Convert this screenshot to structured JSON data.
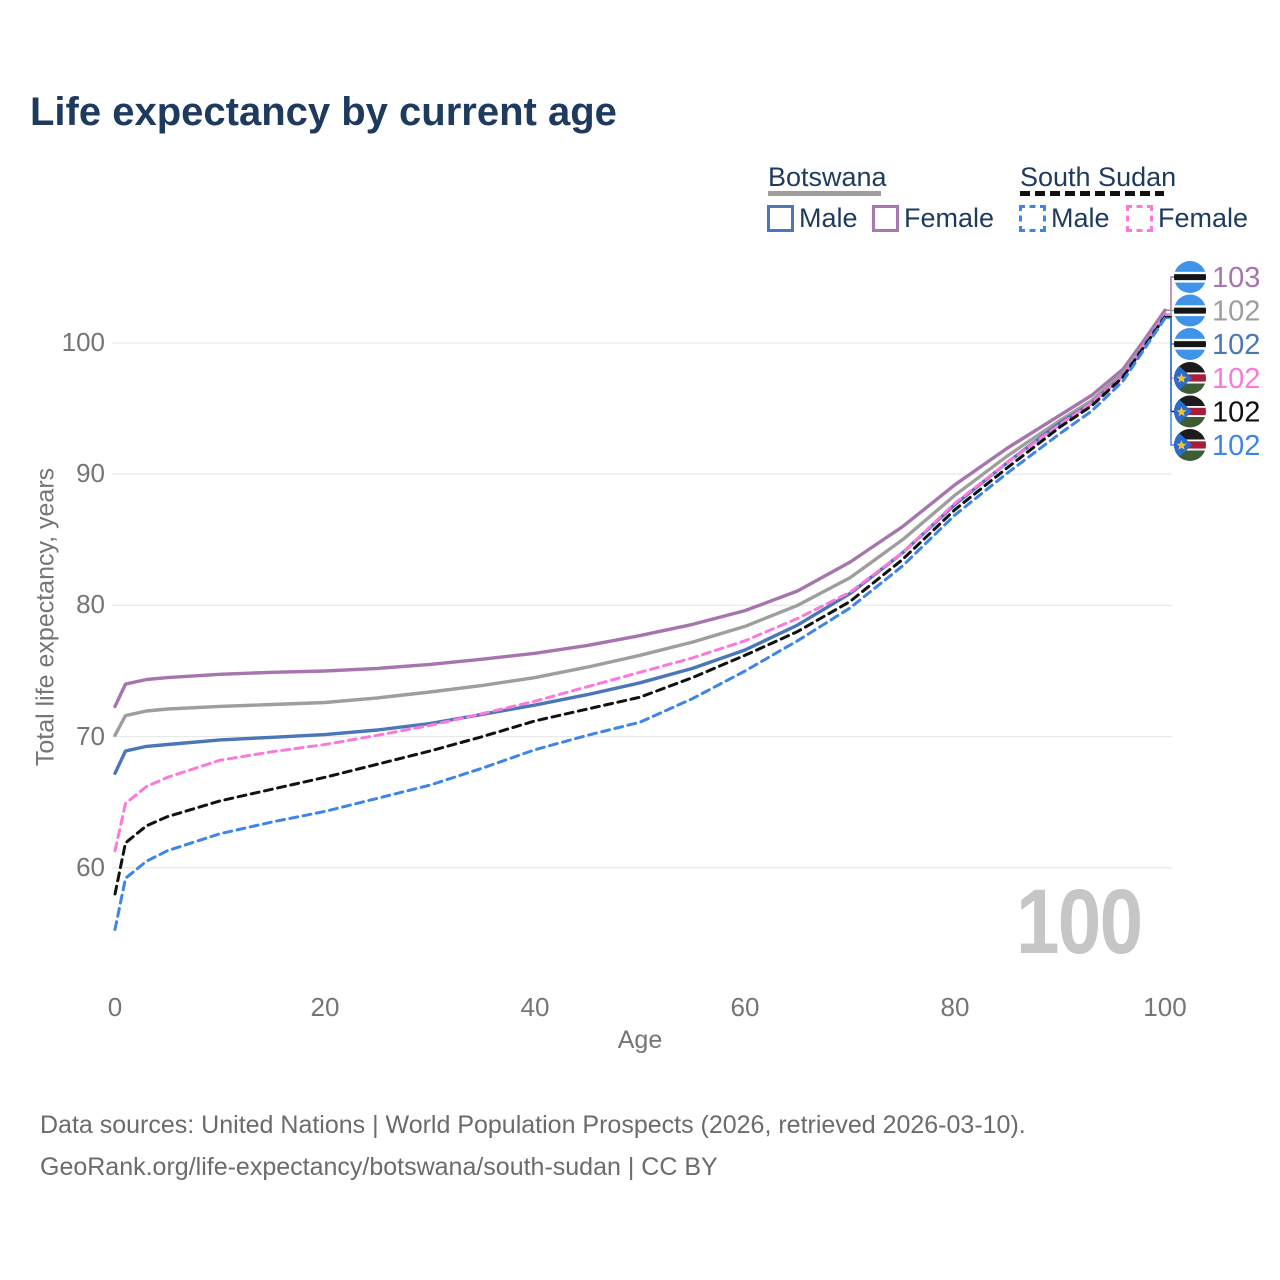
{
  "title": "Life expectancy by current age",
  "legend": {
    "groups": [
      {
        "label": "Botswana",
        "line_style": "solid",
        "underline_color": "#9e9e9e",
        "items": [
          {
            "label": "Male",
            "color": "#4a77b8",
            "dashed": false
          },
          {
            "label": "Female",
            "color": "#ab77b1",
            "dashed": false
          }
        ]
      },
      {
        "label": "South Sudan",
        "line_style": "dashed",
        "underline_color": "#111111",
        "items": [
          {
            "label": "Male",
            "color": "#3d85e9",
            "dashed": true
          },
          {
            "label": "Female",
            "color": "#fb7ad9",
            "dashed": true
          }
        ]
      }
    ]
  },
  "y_axis": {
    "label": "Total life expectancy, years",
    "ticks": [
      100,
      90,
      80,
      70,
      60
    ]
  },
  "x_axis": {
    "label": "Age",
    "ticks": [
      0,
      20,
      40,
      60,
      80,
      100
    ]
  },
  "watermark": "100",
  "end_labels": [
    {
      "flag": "botswana",
      "value": "103",
      "color": "#a775ae"
    },
    {
      "flag": "botswana",
      "value": "102",
      "color": "#9e9e9e"
    },
    {
      "flag": "botswana",
      "value": "102",
      "color": "#4a77b8"
    },
    {
      "flag": "south-sudan",
      "value": "102",
      "color": "#fb7ad9"
    },
    {
      "flag": "south-sudan",
      "value": "102",
      "color": "#111111"
    },
    {
      "flag": "south-sudan",
      "value": "102",
      "color": "#3d85e9"
    }
  ],
  "footer": {
    "line1": "Data sources: United Nations | World Population Prospects (2026, retrieved 2026-03-10).",
    "line2": "GeoRank.org/life-expectancy/botswana/south-sudan | CC BY"
  },
  "chart_data": {
    "type": "line",
    "title": "Life expectancy by current age",
    "xlabel": "Age",
    "ylabel": "Total life expectancy, years",
    "xlim": [
      0,
      100
    ],
    "ylim": [
      54,
      104
    ],
    "grid": "horizontal-only",
    "legend_position": "top-right",
    "x": [
      0,
      1,
      3,
      5,
      10,
      15,
      20,
      25,
      30,
      35,
      40,
      45,
      50,
      55,
      60,
      65,
      70,
      75,
      80,
      85,
      90,
      93,
      96,
      98,
      100
    ],
    "series": [
      {
        "name": "Botswana Female",
        "style": "solid",
        "color": "#a775ae",
        "values": [
          72.3,
          74.0,
          74.35,
          74.5,
          74.75,
          74.9,
          75.0,
          75.2,
          75.5,
          75.9,
          76.35,
          76.95,
          77.7,
          78.55,
          79.6,
          81.1,
          83.3,
          86.0,
          89.2,
          92.0,
          94.5,
          96.0,
          98.0,
          100.2,
          102.5
        ]
      },
      {
        "name": "Botswana All",
        "style": "solid",
        "color": "#9e9e9e",
        "values": [
          70.1,
          71.6,
          71.95,
          72.1,
          72.3,
          72.45,
          72.6,
          72.95,
          73.4,
          73.9,
          74.5,
          75.3,
          76.2,
          77.2,
          78.4,
          80.0,
          82.1,
          85.0,
          88.4,
          91.4,
          94.1,
          95.6,
          97.7,
          99.9,
          102.2
        ]
      },
      {
        "name": "Botswana Male",
        "style": "solid",
        "color": "#4a77b8",
        "values": [
          67.2,
          68.9,
          69.25,
          69.4,
          69.75,
          69.95,
          70.15,
          70.5,
          71.0,
          71.7,
          72.4,
          73.2,
          74.1,
          75.2,
          76.6,
          78.5,
          80.9,
          84.0,
          87.7,
          90.9,
          93.9,
          95.4,
          97.5,
          99.8,
          102.1
        ]
      },
      {
        "name": "South Sudan Female",
        "style": "dashed",
        "color": "#fb7ad9",
        "values": [
          61.3,
          64.9,
          66.2,
          66.9,
          68.2,
          68.85,
          69.4,
          70.1,
          70.85,
          71.75,
          72.7,
          73.8,
          74.9,
          76.0,
          77.3,
          79.0,
          81.0,
          84.0,
          87.8,
          90.9,
          93.8,
          95.4,
          97.5,
          99.8,
          102.1
        ]
      },
      {
        "name": "South Sudan All",
        "style": "dashed",
        "color": "#111111",
        "values": [
          58.0,
          61.9,
          63.2,
          63.9,
          65.1,
          66.0,
          66.9,
          67.9,
          68.9,
          70.0,
          71.2,
          72.1,
          73.0,
          74.5,
          76.2,
          78.0,
          80.3,
          83.5,
          87.3,
          90.5,
          93.6,
          95.2,
          97.4,
          99.7,
          102.0
        ]
      },
      {
        "name": "South Sudan Male",
        "style": "dashed",
        "color": "#3d85e9",
        "values": [
          55.3,
          59.2,
          60.5,
          61.3,
          62.6,
          63.5,
          64.3,
          65.3,
          66.3,
          67.6,
          69.0,
          70.1,
          71.1,
          72.9,
          75.0,
          77.3,
          79.8,
          83.0,
          86.9,
          90.1,
          93.1,
          94.8,
          97.1,
          99.5,
          101.9
        ]
      }
    ]
  }
}
